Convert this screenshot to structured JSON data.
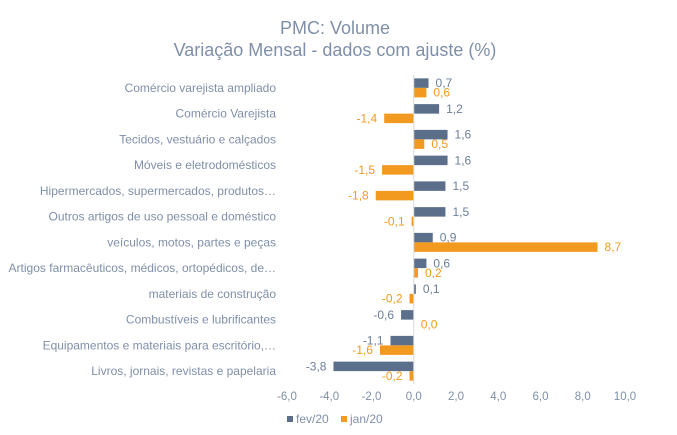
{
  "chart_data": {
    "type": "bar",
    "orientation": "horizontal",
    "title": "PMC: Volume",
    "subtitle": "Variação Mensal - dados com ajuste (%)",
    "categories": [
      "Comércio varejista ampliado",
      "Comércio Varejista",
      "Tecidos, vestuário e calçados",
      "Móveis e eletrodomésticos",
      "Hipermercados, supermercados, produtos…",
      "Outros artigos de uso pessoal e doméstico",
      "veículos, motos, partes e peças",
      "Artigos farmacêuticos, médicos, ortopédicos, de…",
      "materiais de construção",
      "Combustíveis e lubrificantes",
      "Equipamentos e materiais para escritório,…",
      "Livros, jornais, revistas e papelaria"
    ],
    "series": [
      {
        "name": "fev/20",
        "color": "#5b6f8a",
        "values": [
          0.7,
          1.2,
          1.6,
          1.6,
          1.5,
          1.5,
          0.9,
          0.6,
          0.1,
          -0.6,
          -1.1,
          -3.8
        ],
        "labels": [
          "0,7",
          "1,2",
          "1,6",
          "1,6",
          "1,5",
          "1,5",
          "0,9",
          "0,6",
          "0,1",
          "-0,6",
          "-1,1",
          "-3,8"
        ]
      },
      {
        "name": "jan/20",
        "color": "#f29a1f",
        "values": [
          0.6,
          -1.4,
          0.5,
          -1.5,
          -1.8,
          -0.1,
          8.7,
          0.2,
          -0.2,
          0.0,
          -1.6,
          -0.2
        ],
        "labels": [
          "0,6",
          "-1,4",
          "0,5",
          "-1,5",
          "-1,8",
          "-0,1",
          "8,7",
          "0,2",
          "-0,2",
          "0,0",
          "-1,6",
          "-0,2"
        ]
      }
    ],
    "x_ticks": [
      -6,
      -4,
      -2,
      0,
      2,
      4,
      6,
      8,
      10
    ],
    "x_tick_labels": [
      "-6,0",
      "-4,0",
      "-2,0",
      "0,0",
      "2,0",
      "4,0",
      "6,0",
      "8,0",
      "10,0"
    ],
    "xlim": [
      -6,
      10
    ],
    "grid": false,
    "legend_position": "bottom"
  }
}
